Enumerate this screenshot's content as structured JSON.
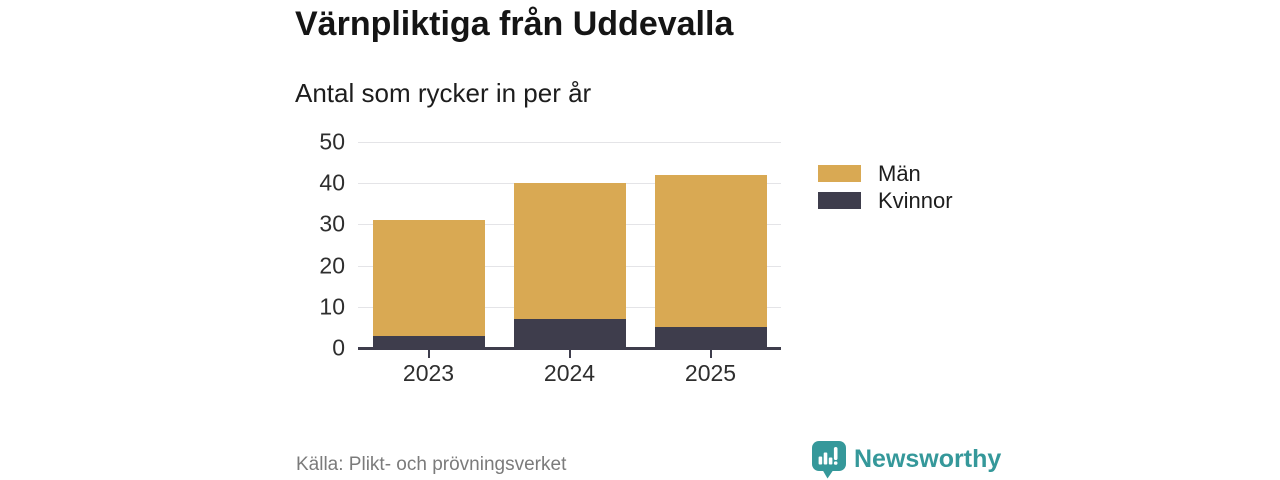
{
  "title": "Värnpliktiga från Uddevalla",
  "subtitle": "Antal som rycker in per år",
  "footer": {
    "source": "Källa: Plikt- och prövningsverket",
    "brand": "Newsworthy"
  },
  "colors": {
    "men": "#d9a953",
    "women": "#3e3d4c",
    "axis": "#3e3d4c",
    "gridline": "#e4e4e7",
    "brand_teal": "#35989a"
  },
  "chart_data": {
    "type": "bar",
    "stacked": true,
    "title": "Värnpliktiga från Uddevalla",
    "subtitle": "Antal som rycker in per år",
    "categories": [
      "2023",
      "2024",
      "2025"
    ],
    "series": [
      {
        "name": "Män",
        "color_key": "men",
        "values": [
          28,
          33,
          37
        ]
      },
      {
        "name": "Kvinnor",
        "color_key": "women",
        "values": [
          3,
          7,
          5
        ]
      }
    ],
    "totals": [
      31,
      40,
      42
    ],
    "ylim": [
      0,
      50
    ],
    "yticks": [
      0,
      10,
      20,
      30,
      40,
      50
    ],
    "grid": true,
    "legend_position": "right"
  }
}
